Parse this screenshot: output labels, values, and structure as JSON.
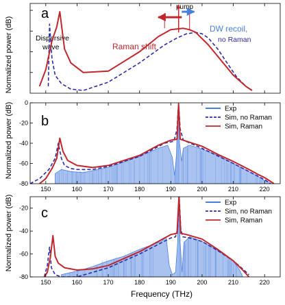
{
  "colors": {
    "exp": "#4a7fe0",
    "exp_fill": "#a9c2f0",
    "no_raman": "#2b2aa6",
    "raman": "#c0262c",
    "axis": "#000000"
  },
  "x_axis": {
    "label": "Frequency (THz)",
    "ticks": [
      150,
      160,
      170,
      180,
      190,
      200,
      210,
      220
    ],
    "range": [
      145,
      225
    ]
  },
  "annotations": {
    "dispersive_wave": [
      "Dispersive",
      "wave"
    ],
    "raman_shift": "Raman shift",
    "pump": "pump",
    "dw_recoil": [
      "DW recoil,",
      "no Raman"
    ]
  },
  "chart_data": [
    {
      "panel": "a",
      "type": "line",
      "ylabel": "Normalized power (dB)",
      "ytick_labels": [],
      "xlim": [
        145,
        225
      ],
      "series": [
        {
          "name": "Sim, no Raman",
          "style": "dashed",
          "x": [
            150.8,
            151.2,
            152,
            153,
            155,
            158,
            162,
            170,
            180,
            188,
            192,
            195,
            198,
            200,
            202,
            205,
            208,
            211,
            214,
            216
          ],
          "y": [
            5,
            50,
            25,
            13,
            7,
            3,
            2,
            8,
            22,
            35,
            40,
            43,
            44,
            43,
            40,
            32,
            22,
            12,
            5,
            2
          ]
        },
        {
          "name": "Sim, Raman",
          "style": "solid",
          "x": [
            148,
            150,
            152,
            153.5,
            154.5,
            156,
            158,
            162,
            170,
            180,
            186,
            190,
            194,
            196,
            198,
            202,
            206,
            210,
            214,
            216
          ],
          "y": [
            5,
            17,
            38,
            48,
            59,
            32,
            22,
            15,
            16,
            30,
            41,
            46,
            47,
            46,
            44,
            35,
            24,
            13,
            5,
            2
          ]
        }
      ]
    },
    {
      "panel": "b",
      "type": "line",
      "ylabel": "Normalized power (dB)",
      "ylim": [
        -80,
        0
      ],
      "yticks": [
        -80,
        -60,
        -40,
        -20,
        0
      ],
      "xlim": [
        145,
        225
      ],
      "legend": {
        "position": "top-right",
        "entries": [
          "Exp",
          "Sim, no Raman",
          "Sim, Raman"
        ]
      },
      "series": [
        {
          "name": "Exp",
          "style": "filled",
          "x": [
            153,
            155,
            158,
            162,
            170,
            180,
            186,
            189,
            190.5,
            191.2,
            191.8,
            192.2,
            192.5,
            192.8,
            193.5,
            194,
            196,
            200,
            205,
            210,
            215,
            218,
            220,
            221,
            222
          ],
          "y": [
            -70,
            -66,
            -68,
            -69,
            -64,
            -53,
            -45,
            -42,
            -54,
            -72,
            -52,
            -10,
            0,
            -40,
            -58,
            -45,
            -42,
            -46,
            -52,
            -60,
            -68,
            -73,
            -77,
            -78,
            -80
          ]
        },
        {
          "name": "Sim, no Raman",
          "style": "dashed",
          "x": [
            145,
            148,
            151,
            153,
            154,
            155,
            156,
            158,
            160,
            165,
            170,
            180,
            188,
            191,
            192,
            192.5,
            193,
            194,
            200,
            210,
            215,
            220,
            222
          ],
          "y": [
            -80,
            -75,
            -66,
            -55,
            -40,
            -55,
            -62,
            -65,
            -66,
            -66,
            -63,
            -53,
            -40,
            -38,
            -26,
            -1,
            -26,
            -37,
            -45,
            -60,
            -68,
            -76,
            -80
          ]
        },
        {
          "name": "Sim, Raman",
          "style": "solid",
          "x": [
            148,
            150,
            152,
            153.5,
            154.5,
            155.5,
            157,
            160,
            165,
            170,
            180,
            186,
            190,
            192,
            192.5,
            193,
            195,
            200,
            205,
            210,
            215,
            218,
            220,
            223
          ],
          "y": [
            -80,
            -75,
            -65,
            -55,
            -35,
            -48,
            -57,
            -62,
            -64,
            -62,
            -52,
            -42,
            -37,
            -36,
            -1,
            -36,
            -38,
            -43,
            -51,
            -58,
            -66,
            -71,
            -74,
            -80
          ]
        }
      ]
    },
    {
      "panel": "c",
      "type": "line",
      "ylabel": "Normalized power (dB)",
      "ylim": [
        -80,
        -10
      ],
      "yticks": [
        -80,
        -60,
        -40,
        -20
      ],
      "xlim": [
        145,
        225
      ],
      "legend": {
        "position": "top-right",
        "entries": [
          "Exp",
          "Sim, no Raman",
          "Sim, Raman"
        ]
      },
      "series": [
        {
          "name": "Exp",
          "style": "filled",
          "x": [
            155,
            160,
            165,
            170,
            175,
            180,
            185,
            187,
            188.5,
            189.5,
            190.5,
            191.5,
            192.2,
            192.6,
            193,
            193.6,
            194.2,
            196,
            200,
            205,
            210,
            212,
            213
          ],
          "y": [
            -78,
            -75,
            -71,
            -66,
            -62,
            -56,
            -51,
            -49,
            -45,
            -70,
            -78,
            -76,
            -50,
            -10,
            -50,
            -76,
            -50,
            -45,
            -49,
            -57,
            -66,
            -74,
            -80
          ]
        },
        {
          "name": "Sim, no Raman",
          "style": "dashed",
          "x": [
            149.5,
            150.5,
            151.2,
            151.8,
            153,
            155,
            160,
            165,
            170,
            180,
            185,
            190,
            191.5,
            192.2,
            192.7,
            193.2,
            193.8,
            196,
            200,
            205,
            210,
            213,
            215
          ],
          "y": [
            -80,
            -70,
            -54,
            -72,
            -78,
            -80,
            -80,
            -76,
            -72,
            -60,
            -53,
            -46,
            -45,
            -38,
            -10,
            -38,
            -45,
            -46,
            -49,
            -57,
            -66,
            -73,
            -78
          ]
        },
        {
          "name": "Sim, Raman",
          "style": "solid",
          "x": [
            149.5,
            150.5,
            151.5,
            152.3,
            153,
            154,
            156,
            160,
            165,
            170,
            180,
            186,
            190,
            192,
            192.6,
            193.2,
            195,
            200,
            205,
            210,
            213,
            215
          ],
          "y": [
            -80,
            -76,
            -62,
            -44,
            -62,
            -68,
            -72,
            -74,
            -73,
            -70,
            -58,
            -49,
            -43,
            -42,
            -10,
            -42,
            -43,
            -47,
            -56,
            -66,
            -74,
            -80
          ]
        }
      ]
    }
  ]
}
